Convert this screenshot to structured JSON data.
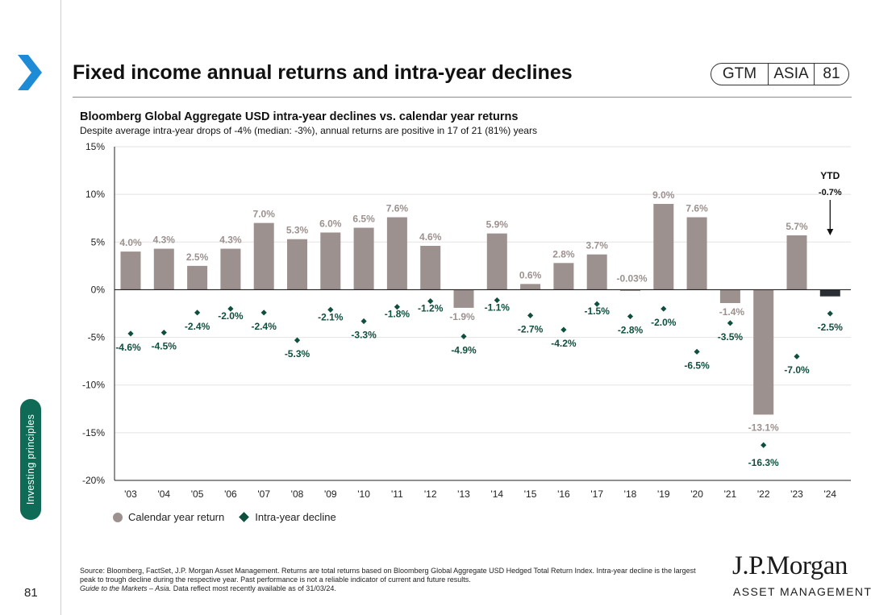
{
  "header": {
    "title": "Fixed income annual returns and intra-year declines",
    "badge": [
      "GTM",
      "ASIA",
      "81"
    ]
  },
  "subtitle": "Bloomberg Global Aggregate USD intra-year declines vs. calendar year returns",
  "subsubtitle": "Despite average intra-year drops of -4% (median: -3%), annual returns are positive in 17 of 21 (81%) years",
  "side_tab": "Investing principles",
  "page_number": "81",
  "legend": {
    "bar": "Calendar year return",
    "marker": "Intra-year decline"
  },
  "ytd": {
    "label": "YTD",
    "value": "-0.7%"
  },
  "source": {
    "text": "Source: Bloomberg, FactSet, J.P. Morgan Asset Management. Returns are total returns based on Bloomberg Global Aggregate USD Hedged Total Return Index. Intra-year decline is the largest peak to trough decline during the respective year. Past performance is not a reliable indicator of current and future results.",
    "italic": "Guide to the Markets – Asia.",
    "tail": " Data reflect most recently available as of 31/03/24."
  },
  "logo": {
    "name": "J.P.Morgan",
    "sub": "ASSET MANAGEMENT"
  },
  "colors": {
    "bar": "#9c918f",
    "bar_ytd": "#2b2f33",
    "marker": "#0f4f3e",
    "bar_label": "#9c918f",
    "marker_label": "#0f4f3e",
    "accent": "#1e8bd6",
    "tab": "#0f6b56"
  },
  "chart_data": {
    "type": "bar",
    "title": "Bloomberg Global Aggregate USD intra-year declines vs. calendar year returns",
    "categories": [
      "'03",
      "'04",
      "'05",
      "'06",
      "'07",
      "'08",
      "'09",
      "'10",
      "'11",
      "'12",
      "'13",
      "'14",
      "'15",
      "'16",
      "'17",
      "'18",
      "'19",
      "'20",
      "'21",
      "'22",
      "'23",
      "'24"
    ],
    "ylim": [
      -20,
      15
    ],
    "yticks": [
      15,
      10,
      5,
      0,
      -5,
      -10,
      -15,
      -20
    ],
    "ytick_labels": [
      "15%",
      "10%",
      "5%",
      "0%",
      "-5%",
      "-10%",
      "-15%",
      "-20%"
    ],
    "series": [
      {
        "name": "Calendar year return",
        "values": [
          4.0,
          4.3,
          2.5,
          4.3,
          7.0,
          5.3,
          6.0,
          6.5,
          7.6,
          4.6,
          -1.9,
          5.9,
          0.6,
          2.8,
          3.7,
          -0.03,
          9.0,
          7.6,
          -1.4,
          -13.1,
          5.7,
          -0.7
        ],
        "labels": [
          "4.0%",
          "4.3%",
          "2.5%",
          "4.3%",
          "7.0%",
          "5.3%",
          "6.0%",
          "6.5%",
          "7.6%",
          "4.6%",
          "-1.9%",
          "5.9%",
          "0.6%",
          "2.8%",
          "3.7%",
          "-0.03%",
          "9.0%",
          "7.6%",
          "-1.4%",
          "-13.1%",
          "5.7%",
          ""
        ]
      },
      {
        "name": "Intra-year decline",
        "values": [
          -4.6,
          -4.5,
          -2.4,
          -2.0,
          -2.4,
          -5.3,
          -2.1,
          -3.3,
          -1.8,
          -1.2,
          -4.9,
          -1.1,
          -2.7,
          -4.2,
          -1.5,
          -2.8,
          -2.0,
          -6.5,
          -3.5,
          -16.3,
          -7.0,
          -2.5
        ],
        "labels": [
          "-4.6%",
          "-4.5%",
          "-2.4%",
          "-2.0%",
          "-2.4%",
          "-5.3%",
          "-2.1%",
          "-3.3%",
          "-1.8%",
          "-1.2%",
          "-4.9%",
          "-1.1%",
          "-2.7%",
          "-4.2%",
          "-1.5%",
          "-2.8%",
          "-2.0%",
          "-6.5%",
          "-3.5%",
          "-16.3%",
          "-7.0%",
          "-2.5%"
        ]
      }
    ]
  }
}
